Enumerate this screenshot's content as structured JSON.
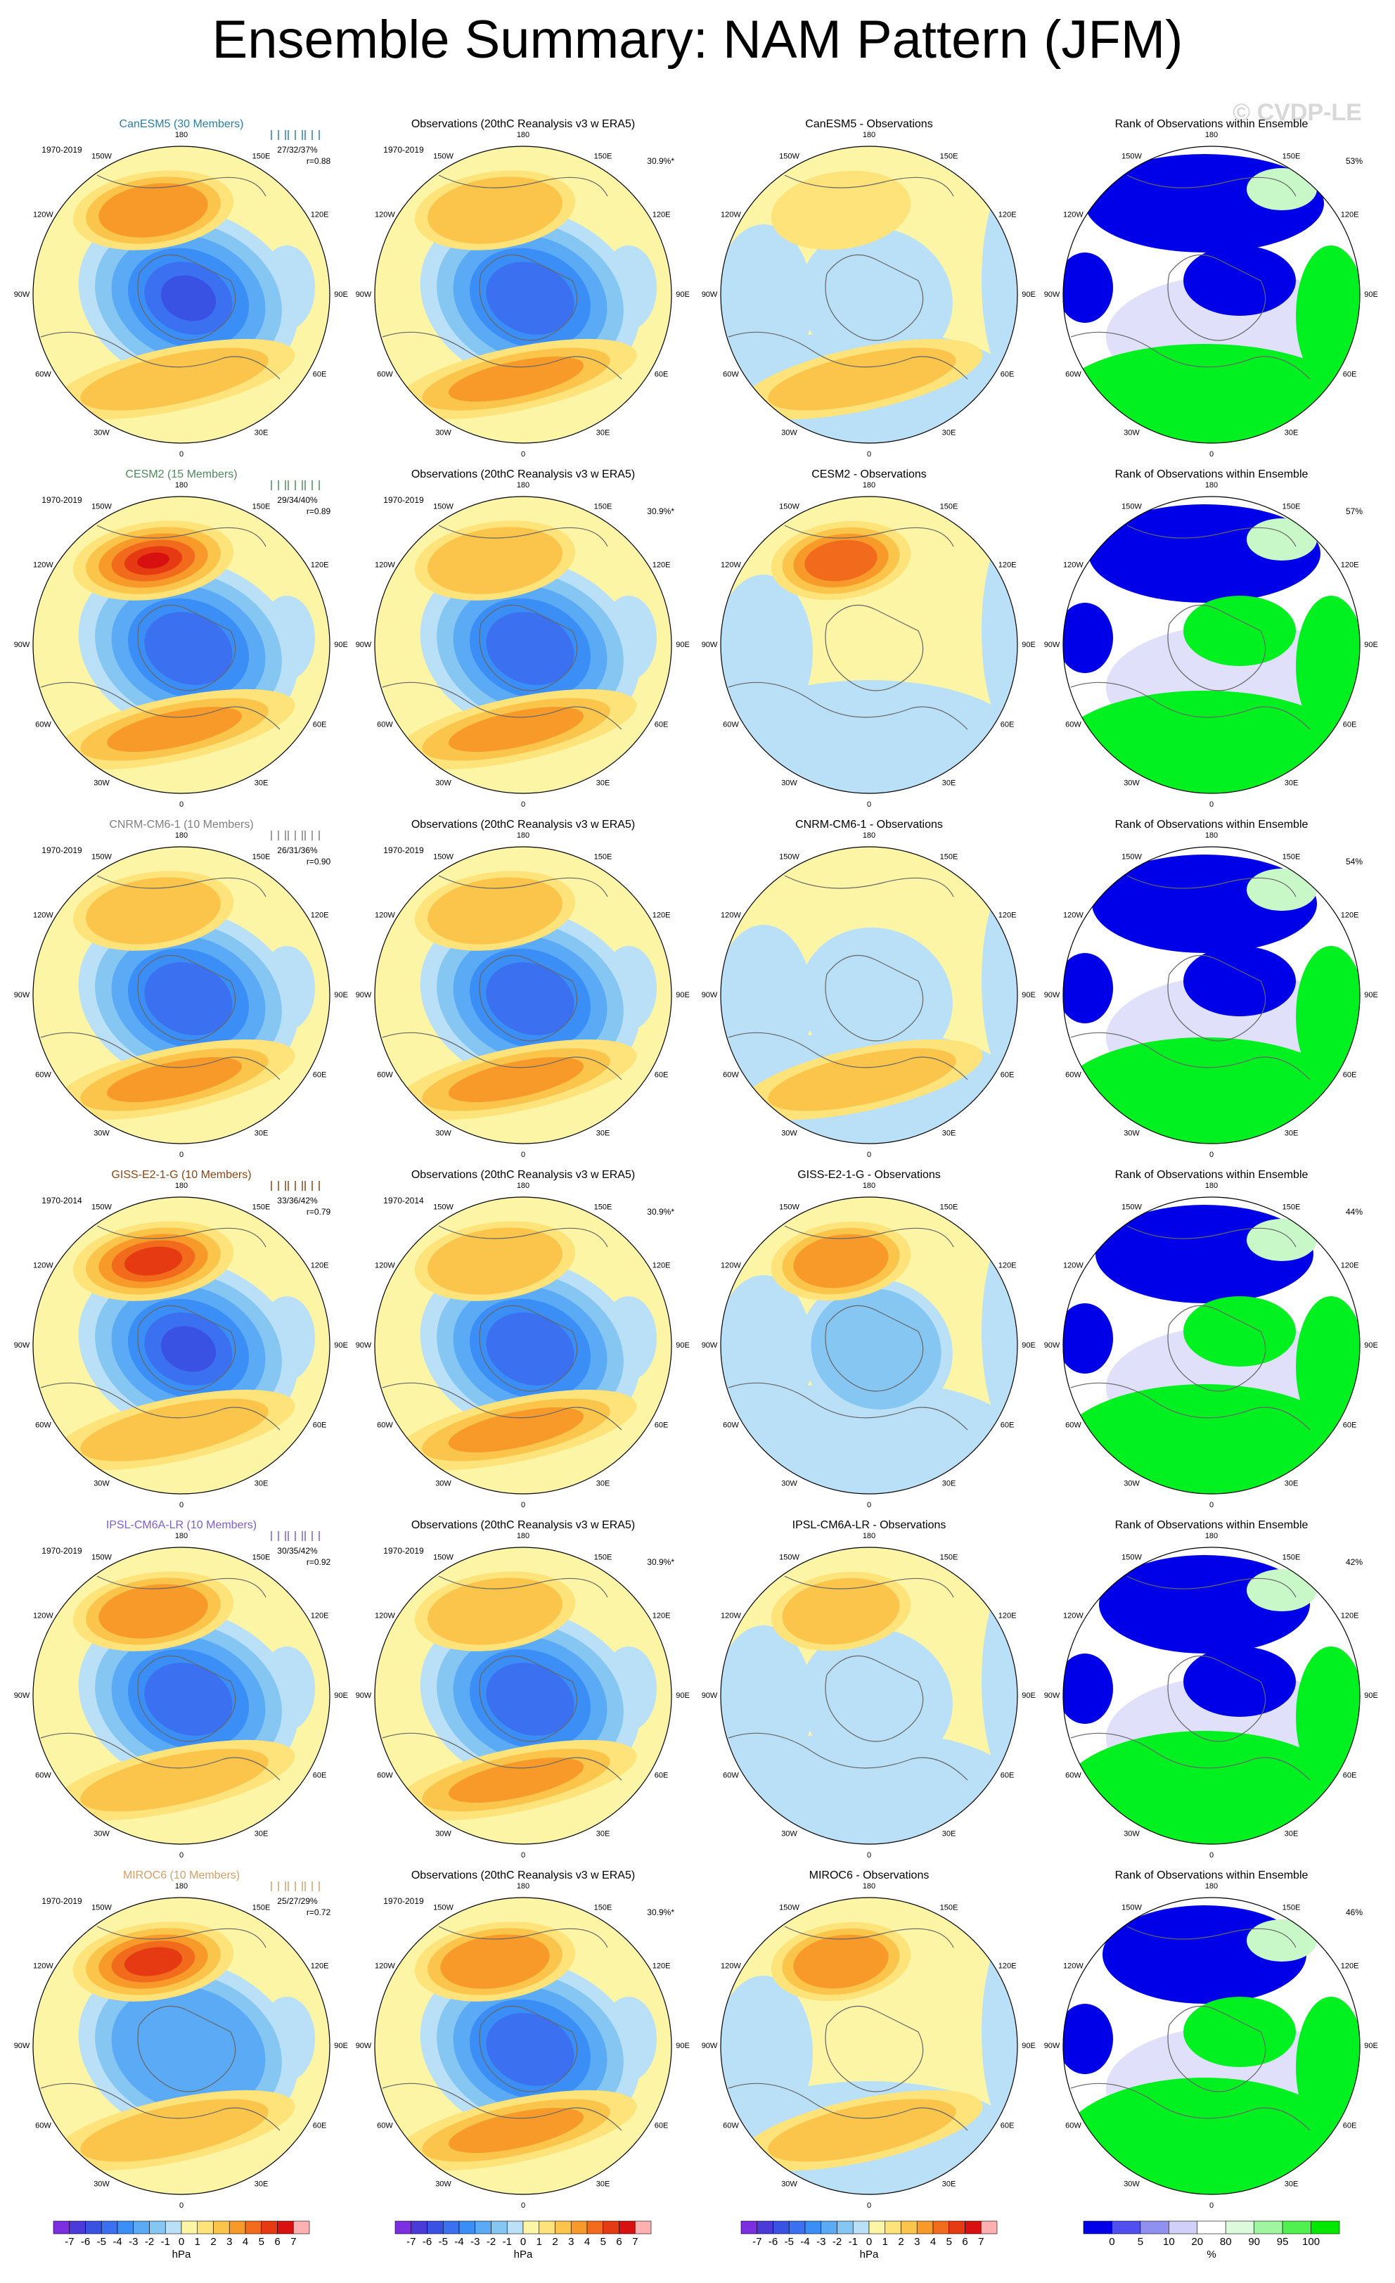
{
  "title": "Ensemble Summary: NAM Pattern (JFM)",
  "watermark": "© CVDP-LE",
  "obs_title": "Observations (20thC Reanalysis v3 w ERA5)",
  "rank_title": "Rank of Observations within Ensemble",
  "lon_labels": [
    "180",
    "150E",
    "120E",
    "90E",
    "60E",
    "30E",
    "0",
    "30W",
    "60W",
    "90W",
    "120W",
    "150W"
  ],
  "rows": [
    {
      "model_title": "CanESM5 (30 Members)",
      "model_color": "#2a7fa8",
      "period": "1970-2019",
      "stats": "27/32/37%",
      "corr": "r=0.88",
      "obs_period": "1970-2019",
      "obs_pct": "30.9%*",
      "diff_title": "CanESM5 - Observations",
      "rank_pct": "53%"
    },
    {
      "model_title": "CESM2 (15 Members)",
      "model_color": "#4f8a5e",
      "period": "1970-2019",
      "stats": "29/34/40%",
      "corr": "r=0.89",
      "obs_period": "1970-2019",
      "obs_pct": "30.9%*",
      "diff_title": "CESM2 - Observations",
      "rank_pct": "57%"
    },
    {
      "model_title": "CNRM-CM6-1 (10 Members)",
      "model_color": "#808080",
      "period": "1970-2019",
      "stats": "26/31/36%",
      "corr": "r=0.90",
      "obs_period": "1970-2019",
      "diff_title": "CNRM-CM6-1 - Observations",
      "rank_pct": "54%"
    },
    {
      "model_title": "GISS-E2-1-G (10 Members)",
      "model_color": "#8b4513",
      "period": "1970-2014",
      "stats": "33/36/42%",
      "corr": "r=0.79",
      "obs_period": "1970-2014",
      "obs_pct": "30.9%*",
      "diff_title": "GISS-E2-1-G - Observations",
      "rank_pct": "44%"
    },
    {
      "model_title": "IPSL-CM6A-LR (10 Members)",
      "model_color": "#7a5fd0",
      "period": "1970-2019",
      "stats": "30/35/42%",
      "corr": "r=0.92",
      "obs_period": "1970-2019",
      "obs_pct": "30.9%*",
      "diff_title": "IPSL-CM6A-LR - Observations",
      "rank_pct": "42%"
    },
    {
      "model_title": "MIROC6 (10 Members)",
      "model_color": "#d4a06a",
      "period": "1970-2019",
      "stats": "25/27/29%",
      "corr": "r=0.72",
      "obs_period": "1970-2019",
      "obs_pct": "30.9%*",
      "diff_title": "MIROC6 - Observations",
      "rank_pct": "46%"
    }
  ],
  "hpa_bar": {
    "labels": [
      "-7",
      "-6",
      "-5",
      "-4",
      "-3",
      "-2",
      "-1",
      "0",
      "1",
      "2",
      "3",
      "4",
      "5",
      "6",
      "7"
    ],
    "unit": "hPa",
    "colors": [
      "#7b2fe0",
      "#4a3ad8",
      "#3a52e4",
      "#3b70f0",
      "#3a8ef5",
      "#5aaaf5",
      "#86c6f2",
      "#b9e0f7",
      "#fdf5a6",
      "#fde37a",
      "#fbc44a",
      "#f79a2a",
      "#f26a1c",
      "#e63a12",
      "#d81010",
      "#ffb0b0"
    ]
  },
  "rank_bar": {
    "labels": [
      "0",
      "5",
      "10",
      "20",
      "80",
      "90",
      "95",
      "100"
    ],
    "unit": "%",
    "colors": [
      "#0000e8",
      "#5050f0",
      "#9090f0",
      "#d0d0f8",
      "#ffffff",
      "#dcfadc",
      "#a0f5a0",
      "#50f050",
      "#00e800"
    ]
  }
}
